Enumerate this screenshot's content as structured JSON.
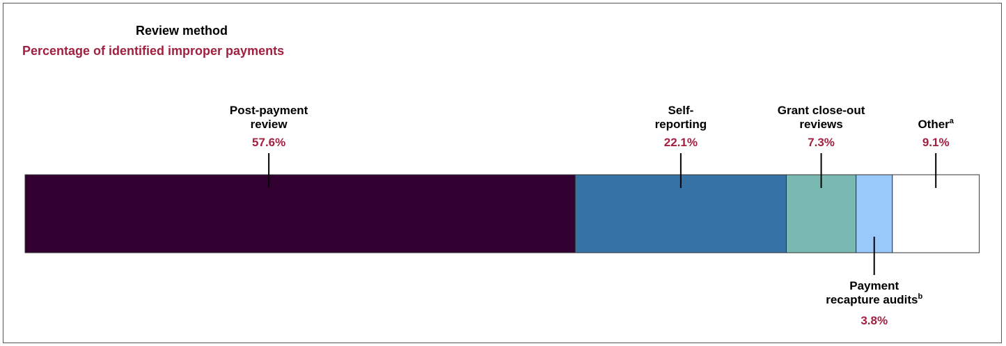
{
  "chart_data": {
    "type": "bar",
    "orientation": "stacked-horizontal-100",
    "title": "Review method",
    "subtitle": "Percentage of identified improper payments",
    "series": [
      {
        "name": "Post-payment review",
        "label_lines": [
          "Post-payment",
          "review"
        ],
        "superscript": "",
        "value": 57.6,
        "value_label": "57.6%",
        "color": "#320030",
        "label_side": "above"
      },
      {
        "name": "Self-reporting",
        "label_lines": [
          "Self-",
          "reporting"
        ],
        "superscript": "",
        "value": 22.1,
        "value_label": "22.1%",
        "color": "#3672a6",
        "label_side": "above"
      },
      {
        "name": "Grant close-out reviews",
        "label_lines": [
          "Grant close-out",
          "reviews"
        ],
        "superscript": "",
        "value": 7.3,
        "value_label": "7.3%",
        "color": "#79b9b2",
        "label_side": "above"
      },
      {
        "name": "Payment recapture audits",
        "label_lines": [
          "Payment",
          "recapture audits"
        ],
        "superscript": "b",
        "value": 3.8,
        "value_label": "3.8%",
        "color": "#99c9fb",
        "label_side": "below"
      },
      {
        "name": "Other",
        "label_lines": [
          "Other"
        ],
        "superscript": "a",
        "value": 9.1,
        "value_label": "9.1%",
        "color": "#ffffff",
        "label_side": "above"
      }
    ],
    "xlim": [
      0,
      100
    ]
  }
}
